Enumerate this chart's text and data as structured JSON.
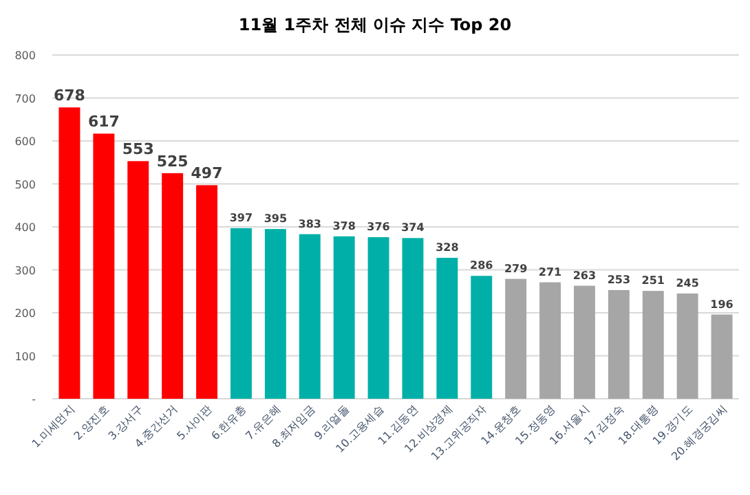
{
  "chart_data": {
    "type": "bar",
    "title": "11월 1주차 전체 이슈 지수 Top 20",
    "categories": [
      "1.미세먼지",
      "2.양진호",
      "3.강서구",
      "4.중간선거",
      "5.사이판",
      "6.한유총",
      "7.유은혜",
      "8.최저임금",
      "9.리얼돌",
      "10.고용세습",
      "11.김동연",
      "12.비상경제",
      "13.고위공직자",
      "14.윤창호",
      "15.정동영",
      "16.서울시",
      "17.김정숙",
      "18.대통령",
      "19.경기도",
      "20.혜경궁김씨"
    ],
    "values": [
      678,
      617,
      553,
      525,
      497,
      397,
      395,
      383,
      378,
      376,
      374,
      328,
      286,
      279,
      271,
      263,
      253,
      251,
      245,
      196
    ],
    "colors": [
      "#ff0000",
      "#ff0000",
      "#ff0000",
      "#ff0000",
      "#ff0000",
      "#00b0a8",
      "#00b0a8",
      "#00b0a8",
      "#00b0a8",
      "#00b0a8",
      "#00b0a8",
      "#00b0a8",
      "#00b0a8",
      "#a6a6a6",
      "#a6a6a6",
      "#a6a6a6",
      "#a6a6a6",
      "#a6a6a6",
      "#a6a6a6",
      "#a6a6a6"
    ],
    "ylim": [
      0,
      800
    ],
    "yticks": [
      {
        "value": 0,
        "label": "-"
      },
      100,
      200,
      300,
      400,
      500,
      600,
      700,
      800
    ],
    "grid": "y",
    "data_labels": true
  }
}
